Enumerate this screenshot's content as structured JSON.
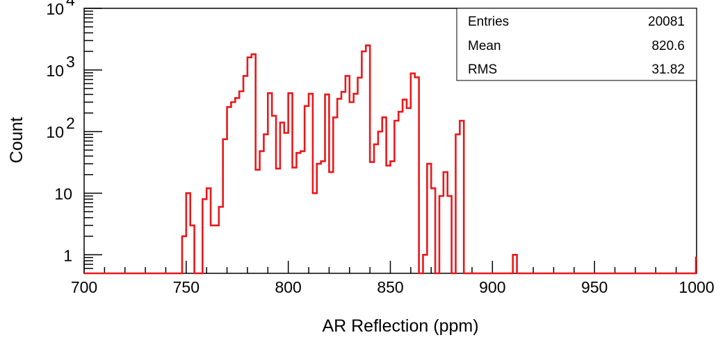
{
  "chart_data": {
    "type": "histogram",
    "xlabel": "AR Reflection (ppm)",
    "ylabel": "Count",
    "xlim": [
      700,
      1000
    ],
    "ylim": [
      0.5,
      10000
    ],
    "y_scale": "log",
    "x_ticks": [
      700,
      750,
      800,
      850,
      900,
      950,
      1000
    ],
    "x_tick_labels": [
      "700",
      "750",
      "800",
      "850",
      "900",
      "950",
      "1000"
    ],
    "y_ticks": [
      {
        "value": 1,
        "base": "1",
        "exp": ""
      },
      {
        "value": 10,
        "base": "10",
        "exp": ""
      },
      {
        "value": 100,
        "base": "10",
        "exp": "2"
      },
      {
        "value": 1000,
        "base": "10",
        "exp": "3"
      },
      {
        "value": 10000,
        "base": "10",
        "exp": "4"
      }
    ],
    "bin_width": 2,
    "bin_edges_start": 748,
    "counts": [
      2,
      10,
      3,
      0,
      0,
      8,
      12,
      3,
      3,
      6,
      75,
      250,
      300,
      350,
      450,
      800,
      1600,
      1800,
      24,
      48,
      90,
      420,
      180,
      25,
      140,
      95,
      420,
      26,
      45,
      48,
      260,
      410,
      10,
      30,
      33,
      400,
      22,
      170,
      340,
      440,
      800,
      300,
      410,
      750,
      2000,
      2500,
      32,
      62,
      100,
      170,
      28,
      33,
      150,
      210,
      330,
      240,
      880,
      760,
      0,
      1,
      30,
      12,
      0,
      9,
      22,
      9,
      0,
      90,
      150
    ],
    "extra_bins": [
      {
        "x": 910,
        "count": 1
      }
    ],
    "line_color": "#e8181b",
    "stats_box": {
      "rows": [
        {
          "label": "Entries",
          "value": "20081"
        },
        {
          "label": "Mean",
          "value": "820.6"
        },
        {
          "label": "RMS",
          "value": "31.82"
        }
      ]
    }
  }
}
